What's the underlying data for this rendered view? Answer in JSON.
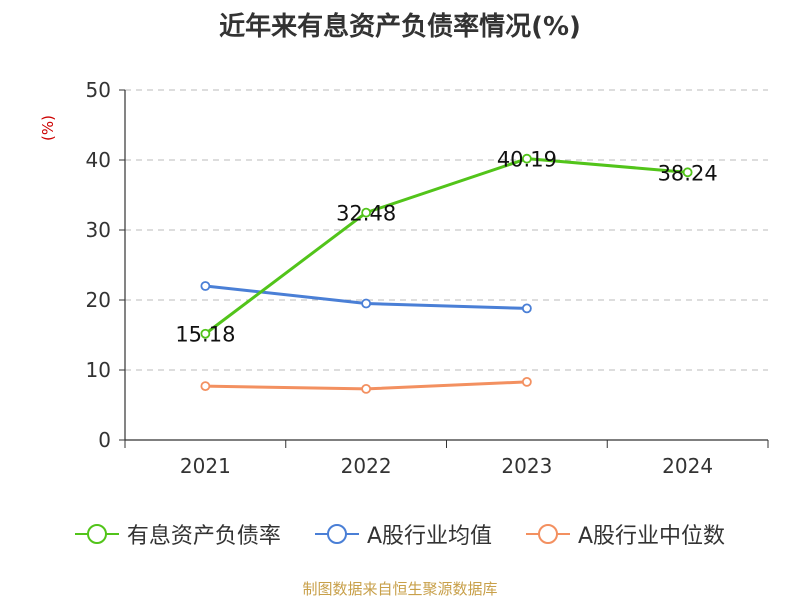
{
  "chart_data": {
    "type": "line",
    "title": "近年来有息资产负债率情况(%)",
    "ylabel": "(%)",
    "xlabel": "",
    "categories": [
      "2021",
      "2022",
      "2023",
      "2024"
    ],
    "ylim": [
      0,
      50
    ],
    "yticks": [
      0,
      10,
      20,
      30,
      40,
      50
    ],
    "grid": true,
    "legend_position": "bottom",
    "series": [
      {
        "name": "有息资产负债率",
        "color": "#52c41a",
        "values": [
          15.18,
          32.48,
          40.19,
          38.24
        ],
        "labels": [
          "15.18",
          "32.48",
          "40.19",
          "38.24"
        ]
      },
      {
        "name": "A股行业均值",
        "color": "#4a7fd6",
        "values": [
          22.0,
          19.5,
          18.8,
          null
        ]
      },
      {
        "name": "A股行业中位数",
        "color": "#f39060",
        "values": [
          7.7,
          7.3,
          8.3,
          null
        ]
      }
    ]
  },
  "source": "制图数据来自恒生聚源数据库"
}
